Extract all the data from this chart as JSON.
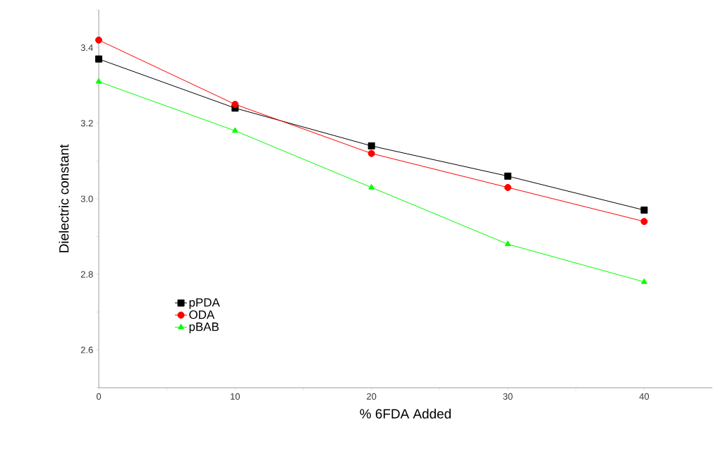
{
  "chart_data": {
    "type": "line",
    "xlabel": "% 6FDA Added",
    "ylabel": "Dielectric constant",
    "x": [
      0,
      10,
      20,
      30,
      40
    ],
    "series": [
      {
        "name": "pPDA",
        "color": "#000000",
        "marker": "square",
        "values": [
          3.37,
          3.24,
          3.14,
          3.06,
          2.97
        ]
      },
      {
        "name": "ODA",
        "color": "#ff0000",
        "marker": "circle",
        "values": [
          3.42,
          3.25,
          3.12,
          3.03,
          2.94
        ]
      },
      {
        "name": "pBAB",
        "color": "#00ff00",
        "marker": "triangle",
        "values": [
          3.31,
          3.18,
          3.03,
          2.88,
          2.78
        ]
      }
    ],
    "xlim": [
      0,
      45
    ],
    "ylim": [
      2.5,
      3.5
    ],
    "xticks": [
      0,
      {
        "value": 5,
        "label": null
      },
      10,
      {
        "value": 15,
        "label": null
      },
      20,
      {
        "value": 25,
        "label": null
      },
      30,
      {
        "value": 35,
        "label": null
      },
      40
    ],
    "yticks": [
      {
        "value": 2.5,
        "label": null
      },
      {
        "value": 2.6,
        "label": "2.6"
      },
      {
        "value": 2.7,
        "label": null
      },
      {
        "value": 2.8,
        "label": "2.8"
      },
      {
        "value": 2.9,
        "label": null
      },
      {
        "value": 3.0,
        "label": "3.0"
      },
      {
        "value": 3.1,
        "label": null
      },
      {
        "value": 3.2,
        "label": "3.2"
      },
      {
        "value": 3.3,
        "label": null
      },
      {
        "value": 3.4,
        "label": "3.4"
      },
      {
        "value": 3.5,
        "label": null
      }
    ],
    "grid": false,
    "legend": "bottom left",
    "line_style": "solid"
  }
}
